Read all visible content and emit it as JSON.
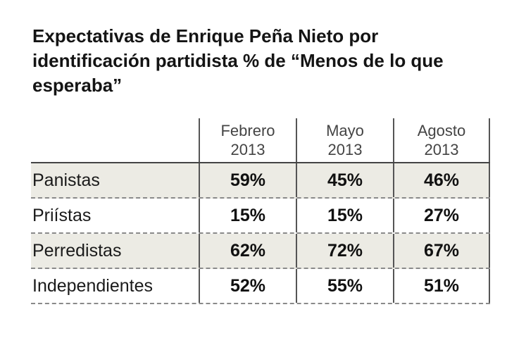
{
  "chart_data": {
    "type": "table",
    "title": "Expectativas de Enrique Peña Nieto por identificación partidista % de “Menos de lo que esperaba”",
    "columns": [
      {
        "month": "Febrero",
        "year": "2013"
      },
      {
        "month": "Mayo",
        "year": "2013"
      },
      {
        "month": "Agosto",
        "year": "2013"
      }
    ],
    "rows": [
      {
        "label": "Panistas",
        "values": [
          "59%",
          "45%",
          "46%"
        ],
        "shaded": true
      },
      {
        "label": "Priístas",
        "values": [
          "15%",
          "15%",
          "27%"
        ],
        "shaded": false
      },
      {
        "label": "Perredistas",
        "values": [
          "62%",
          "72%",
          "67%"
        ],
        "shaded": true
      },
      {
        "label": "Independientes",
        "values": [
          "52%",
          "55%",
          "51%"
        ],
        "shaded": false
      }
    ]
  }
}
